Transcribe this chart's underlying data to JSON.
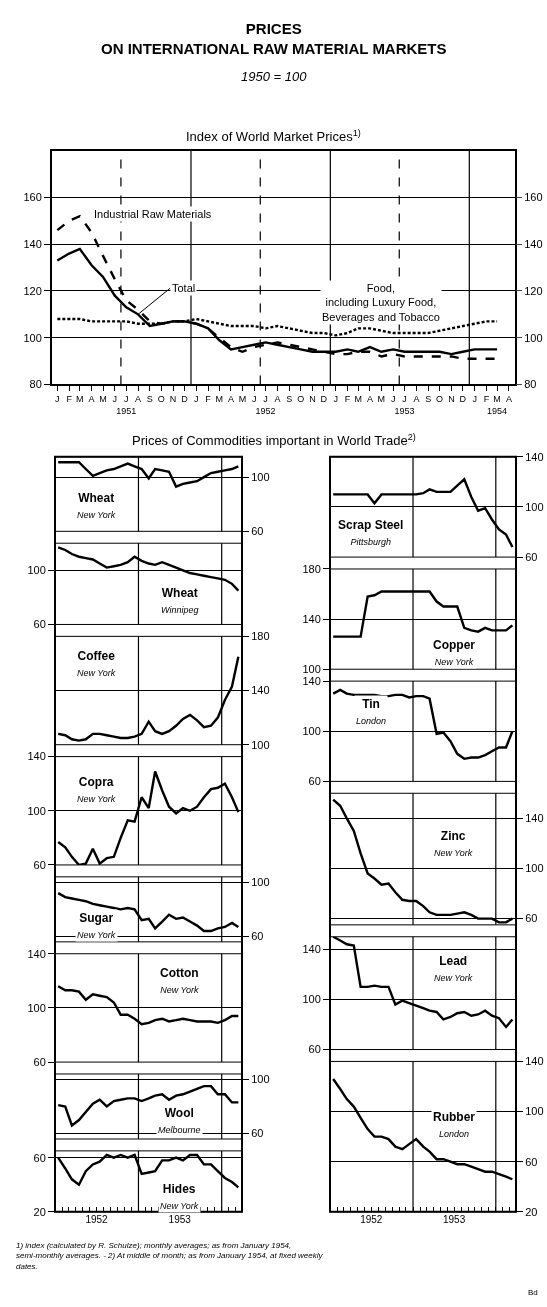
{
  "chart_data": [
    {
      "type": "line",
      "title": "PRICES\nON INTERNATIONAL RAW MATERIAL MARKETS",
      "subtitle": "1950 = 100",
      "annotations": [
        "Index of World Market Prices$^{1)}$"
      ],
      "x": [
        "1951-01-15",
        "1951-02-15",
        "1951-03-15",
        "1951-04-15",
        "1951-05-15",
        "1951-06-15",
        "1951-07-15",
        "1951-08-15",
        "1951-09-15",
        "1951-10-15",
        "1951-11-15",
        "1951-12-15",
        "1952-01-15",
        "1952-02-15",
        "1952-03-15",
        "1952-04-15",
        "1952-05-15",
        "1952-06-15",
        "1952-07-15",
        "1952-08-15",
        "1952-09-15",
        "1952-10-15",
        "1952-11-15",
        "1952-12-15",
        "1953-01-15",
        "1953-02-15",
        "1953-03-15",
        "1953-04-15",
        "1953-05-15",
        "1953-06-15",
        "1953-07-15",
        "1953-08-15",
        "1953-09-15",
        "1953-10-15",
        "1953-11-15",
        "1953-12-15",
        "1954-01-15",
        "1954-02-15",
        "1954-03-15"
      ],
      "series": [
        {
          "name": "Industrial Raw Materials",
          "color": "#000000",
          "line_style": "dashed",
          "values": [
            146,
            150,
            152,
            145,
            135,
            125,
            116,
            112,
            107,
            106,
            107,
            107,
            106,
            104,
            100,
            96,
            94,
            96,
            97,
            98,
            97,
            96,
            95,
            94,
            93,
            93,
            94,
            94,
            92,
            93,
            92,
            92,
            92,
            92,
            92,
            91,
            91,
            91,
            91
          ]
        },
        {
          "name": "Total",
          "color": "#000000",
          "line_style": "solid",
          "values": [
            133,
            136,
            138,
            131,
            126,
            118,
            113,
            110,
            105,
            106,
            107,
            107,
            106,
            104,
            99,
            95,
            96,
            97,
            98,
            97,
            96,
            95,
            94,
            94,
            94,
            95,
            94,
            96,
            94,
            95,
            94,
            94,
            94,
            94,
            93,
            94,
            95,
            95,
            95
          ]
        },
        {
          "name": "Food,\nincluding Luxury Food,\nBeverages and Tobacco",
          "color": "#000000",
          "line_style": "dotted",
          "values": [
            108,
            108,
            108,
            107,
            107,
            107,
            107,
            106,
            106,
            106,
            107,
            107,
            108,
            107,
            106,
            105,
            105,
            105,
            104,
            105,
            104,
            103,
            102,
            102,
            101,
            102,
            104,
            104,
            103,
            102,
            102,
            102,
            102,
            103,
            104,
            105,
            106,
            107,
            107
          ]
        }
      ],
      "xlim": [
        "1951-01-01",
        "1954-05-01"
      ],
      "xticks": [
        {
          "value": "1951-01-15",
          "label": "J"
        },
        {
          "value": "1951-02-15",
          "label": "F"
        },
        {
          "value": "1951-03-15",
          "label": "M"
        },
        {
          "value": "1951-04-15",
          "label": "A"
        },
        {
          "value": "1951-05-15",
          "label": "M"
        },
        {
          "value": "1951-06-15",
          "label": "J"
        },
        {
          "value": "1951-07-15",
          "label": "J\n1951"
        },
        {
          "value": "1951-08-15",
          "label": "A"
        },
        {
          "value": "1951-09-15",
          "label": "S"
        },
        {
          "value": "1951-10-15",
          "label": "O"
        },
        {
          "value": "1951-11-15",
          "label": "N"
        },
        {
          "value": "1951-12-15",
          "label": "D"
        },
        {
          "value": "1952-01-15",
          "label": "J"
        },
        {
          "value": "1952-02-15",
          "label": "F"
        },
        {
          "value": "1952-03-15",
          "label": "M"
        },
        {
          "value": "1952-04-15",
          "label": "A"
        },
        {
          "value": "1952-05-15",
          "label": "M"
        },
        {
          "value": "1952-06-15",
          "label": "J"
        },
        {
          "value": "1952-07-15",
          "label": "J\n1952"
        },
        {
          "value": "1952-08-15",
          "label": "A"
        },
        {
          "value": "1952-09-15",
          "label": "S"
        },
        {
          "value": "1952-10-15",
          "label": "O"
        },
        {
          "value": "1952-11-15",
          "label": "N"
        },
        {
          "value": "1952-12-15",
          "label": "D"
        },
        {
          "value": "1953-01-15",
          "label": "J"
        },
        {
          "value": "1953-02-15",
          "label": "F"
        },
        {
          "value": "1953-03-15",
          "label": "M"
        },
        {
          "value": "1953-04-15",
          "label": "A"
        },
        {
          "value": "1953-05-15",
          "label": "M"
        },
        {
          "value": "1953-06-15",
          "label": "J"
        },
        {
          "value": "1953-07-15",
          "label": "J\n1953"
        },
        {
          "value": "1953-08-15",
          "label": "A"
        },
        {
          "value": "1953-09-15",
          "label": "S"
        },
        {
          "value": "1953-10-15",
          "label": "O"
        },
        {
          "value": "1953-11-15",
          "label": "N"
        },
        {
          "value": "1953-12-15",
          "label": "D"
        },
        {
          "value": "1954-01-15",
          "label": "J"
        },
        {
          "value": "1954-02-15",
          "label": "F"
        },
        {
          "value": "1954-03-15",
          "label": "M\n1954"
        },
        {
          "value": "1954-04-15",
          "label": "A"
        }
      ],
      "ylim": [
        80,
        180
      ],
      "yticks": [
        80,
        100,
        120,
        140,
        160
      ],
      "y2lim": [
        80,
        180
      ],
      "y2ticks": [
        80,
        100,
        120,
        140,
        160
      ],
      "grid": "y",
      "ref_lines": [
        {
          "axis": "x",
          "value": "1951-07-01",
          "line_style": "dashed"
        },
        {
          "axis": "x",
          "value": "1952-01-01",
          "line_style": "solid"
        },
        {
          "axis": "x",
          "value": "1952-07-01",
          "line_style": "dashed"
        },
        {
          "axis": "x",
          "value": "1953-01-01",
          "line_style": "solid"
        },
        {
          "axis": "x",
          "value": "1953-07-01",
          "line_style": "dashed"
        },
        {
          "axis": "x",
          "value": "1954-01-01",
          "line_style": "solid"
        }
      ]
    },
    {
      "type": "line",
      "title": "Wheat",
      "subtitle": "New York",
      "annotations": [
        "Prices of Commodities important in World Trade$^{2)}$"
      ],
      "x": [
        "1952-01-15",
        "1952-02-15",
        "1952-03-15",
        "1952-04-15",
        "1952-05-15",
        "1952-06-15",
        "1952-07-15",
        "1952-08-15",
        "1952-09-15",
        "1952-10-15",
        "1952-11-15",
        "1952-12-15",
        "1953-01-15",
        "1953-02-15",
        "1953-03-15",
        "1953-04-15",
        "1953-05-15",
        "1953-06-15",
        "1953-07-15",
        "1953-08-15",
        "1953-09-15",
        "1953-10-15",
        "1953-11-15",
        "1953-12-15",
        "1954-01-15",
        "1954-02-15",
        "1954-03-15"
      ],
      "series": [
        {
          "color": "#000000",
          "values": [
            111,
            111,
            111,
            111,
            106,
            101,
            103,
            105,
            106,
            108,
            110,
            108,
            106,
            99,
            106,
            105,
            104,
            93,
            95,
            96,
            97,
            100,
            103,
            104,
            105,
            106,
            108
          ]
        }
      ],
      "xlim": [
        "1952-01-01",
        "1954-03-31"
      ],
      "ylim": [
        60,
        115
      ],
      "yticks": [
        60,
        100
      ],
      "grid": "y",
      "tick_labels": "y",
      "ref_lines": [
        {
          "axis": "x",
          "value": "1953-01-01",
          "line_style": "solid"
        },
        {
          "axis": "x",
          "value": "1954-01-01",
          "line_style": "solid"
        }
      ]
    },
    {
      "type": "line",
      "title": "Wheat",
      "subtitle": "Winnipeg",
      "x": [
        "1952-01-15",
        "1952-02-15",
        "1952-03-15",
        "1952-04-15",
        "1952-05-15",
        "1952-06-15",
        "1952-07-15",
        "1952-08-15",
        "1952-09-15",
        "1952-10-15",
        "1952-11-15",
        "1952-12-15",
        "1953-01-15",
        "1953-02-15",
        "1953-03-15",
        "1953-04-15",
        "1953-05-15",
        "1953-06-15",
        "1953-07-15",
        "1953-08-15",
        "1953-09-15",
        "1953-10-15",
        "1953-11-15",
        "1953-12-15",
        "1954-01-15",
        "1954-02-15",
        "1954-03-15"
      ],
      "series": [
        {
          "color": "#000000",
          "values": [
            117,
            115,
            112,
            110,
            109,
            108,
            105,
            102,
            103,
            104,
            106,
            110,
            107,
            105,
            104,
            106,
            104,
            102,
            100,
            98,
            97,
            96,
            95,
            94,
            93,
            90,
            85
          ]
        }
      ],
      "xlim": [
        "1952-01-01",
        "1954-03-31"
      ],
      "ylim": [
        60,
        120
      ],
      "yticks": [
        60,
        100
      ],
      "grid": "y",
      "tick_labels": "y",
      "ref_lines": [
        {
          "axis": "x",
          "value": "1953-01-01",
          "line_style": "solid"
        },
        {
          "axis": "x",
          "value": "1954-01-01",
          "line_style": "solid"
        }
      ]
    },
    {
      "type": "line",
      "title": "Coffee",
      "subtitle": "New York",
      "x": [
        "1952-01-15",
        "1952-02-15",
        "1952-03-15",
        "1952-04-15",
        "1952-05-15",
        "1952-06-15",
        "1952-07-15",
        "1952-08-15",
        "1952-09-15",
        "1952-10-15",
        "1952-11-15",
        "1952-12-15",
        "1953-01-15",
        "1953-02-15",
        "1953-03-15",
        "1953-04-15",
        "1953-05-15",
        "1953-06-15",
        "1953-07-15",
        "1953-08-15",
        "1953-09-15",
        "1953-10-15",
        "1953-11-15",
        "1953-12-15",
        "1954-01-15",
        "1954-02-15",
        "1954-03-15"
      ],
      "series": [
        {
          "color": "#000000",
          "values": [
            108,
            107,
            104,
            103,
            104,
            108,
            108,
            107,
            106,
            105,
            105,
            106,
            108,
            117,
            110,
            108,
            110,
            114,
            119,
            122,
            118,
            113,
            114,
            120,
            133,
            143,
            165
          ]
        }
      ],
      "xlim": [
        "1952-01-01",
        "1954-03-31"
      ],
      "ylim": [
        100,
        180
      ],
      "yticks": [
        100,
        140,
        180
      ],
      "grid": "y",
      "tick_labels": "y",
      "ref_lines": [
        {
          "axis": "x",
          "value": "1953-01-01",
          "line_style": "solid"
        },
        {
          "axis": "x",
          "value": "1954-01-01",
          "line_style": "solid"
        }
      ]
    },
    {
      "type": "line",
      "title": "Copra",
      "subtitle": "New York",
      "x": [
        "1952-01-15",
        "1952-02-15",
        "1952-03-15",
        "1952-04-15",
        "1952-05-15",
        "1952-06-15",
        "1952-07-15",
        "1952-08-15",
        "1952-09-15",
        "1952-10-15",
        "1952-11-15",
        "1952-12-15",
        "1953-01-15",
        "1953-02-15",
        "1953-03-15",
        "1953-04-15",
        "1953-05-15",
        "1953-06-15",
        "1953-07-15",
        "1953-08-15",
        "1953-09-15",
        "1953-10-15",
        "1953-11-15",
        "1953-12-15",
        "1954-01-15",
        "1954-02-15",
        "1954-03-15"
      ],
      "series": [
        {
          "color": "#000000",
          "values": [
            77,
            73,
            66,
            60,
            61,
            72,
            61,
            65,
            66,
            80,
            93,
            92,
            110,
            102,
            129,
            115,
            103,
            98,
            102,
            100,
            103,
            110,
            116,
            117,
            120,
            110,
            99
          ]
        }
      ],
      "xlim": [
        "1952-01-01",
        "1954-03-31"
      ],
      "ylim": [
        60,
        140
      ],
      "yticks": [
        60,
        100,
        140
      ],
      "grid": "y",
      "tick_labels": "y",
      "ref_lines": [
        {
          "axis": "x",
          "value": "1953-01-01",
          "line_style": "solid"
        },
        {
          "axis": "x",
          "value": "1954-01-01",
          "line_style": "solid"
        }
      ]
    },
    {
      "type": "line",
      "title": "Sugar",
      "subtitle": "New York",
      "x": [
        "1952-01-15",
        "1952-02-15",
        "1952-03-15",
        "1952-04-15",
        "1952-05-15",
        "1952-06-15",
        "1952-07-15",
        "1952-08-15",
        "1952-09-15",
        "1952-10-15",
        "1952-11-15",
        "1952-12-15",
        "1953-01-15",
        "1953-02-15",
        "1953-03-15",
        "1953-04-15",
        "1953-05-15",
        "1953-06-15",
        "1953-07-15",
        "1953-08-15",
        "1953-09-15",
        "1953-10-15",
        "1953-11-15",
        "1953-12-15",
        "1954-01-15",
        "1954-02-15",
        "1954-03-15"
      ],
      "series": [
        {
          "color": "#000000",
          "values": [
            92,
            89,
            88,
            87,
            86,
            84,
            83,
            82,
            81,
            80,
            81,
            80,
            72,
            73,
            66,
            71,
            76,
            73,
            74,
            71,
            68,
            64,
            64,
            66,
            67,
            70,
            67
          ]
        }
      ],
      "xlim": [
        "1952-01-01",
        "1954-03-31"
      ],
      "ylim": [
        56,
        104
      ],
      "yticks": [
        60,
        100
      ],
      "grid": "y",
      "tick_labels": "y",
      "ref_lines": [
        {
          "axis": "x",
          "value": "1953-01-01",
          "line_style": "solid"
        },
        {
          "axis": "x",
          "value": "1954-01-01",
          "line_style": "solid"
        }
      ]
    },
    {
      "type": "line",
      "title": "Cotton",
      "subtitle": "New York",
      "x": [
        "1952-01-15",
        "1952-02-15",
        "1952-03-15",
        "1952-04-15",
        "1952-05-15",
        "1952-06-15",
        "1952-07-15",
        "1952-08-15",
        "1952-09-15",
        "1952-10-15",
        "1952-11-15",
        "1952-12-15",
        "1953-01-15",
        "1953-02-15",
        "1953-03-15",
        "1953-04-15",
        "1953-05-15",
        "1953-06-15",
        "1953-07-15",
        "1953-08-15",
        "1953-09-15",
        "1953-10-15",
        "1953-11-15",
        "1953-12-15",
        "1954-01-15",
        "1954-02-15",
        "1954-03-15"
      ],
      "series": [
        {
          "color": "#000000",
          "values": [
            116,
            113,
            113,
            112,
            106,
            110,
            109,
            108,
            104,
            95,
            95,
            92,
            88,
            89,
            91,
            92,
            90,
            91,
            92,
            91,
            90,
            90,
            90,
            89,
            91,
            94,
            94
          ]
        }
      ],
      "xlim": [
        "1952-01-01",
        "1954-03-31"
      ],
      "ylim": [
        60,
        140
      ],
      "yticks": [
        60,
        100,
        140
      ],
      "grid": "y",
      "tick_labels": "y",
      "ref_lines": [
        {
          "axis": "x",
          "value": "1953-01-01",
          "line_style": "solid"
        },
        {
          "axis": "x",
          "value": "1954-01-01",
          "line_style": "solid"
        }
      ]
    },
    {
      "type": "line",
      "title": "Wool",
      "subtitle": "Melbourne",
      "x": [
        "1952-01-15",
        "1952-02-15",
        "1952-03-15",
        "1952-04-15",
        "1952-05-15",
        "1952-06-15",
        "1952-07-15",
        "1952-08-15",
        "1952-09-15",
        "1952-10-15",
        "1952-11-15",
        "1952-12-15",
        "1953-01-15",
        "1953-02-15",
        "1953-03-15",
        "1953-04-15",
        "1953-05-15",
        "1953-06-15",
        "1953-07-15",
        "1953-08-15",
        "1953-09-15",
        "1953-10-15",
        "1953-11-15",
        "1953-12-15",
        "1954-01-15",
        "1954-02-15",
        "1954-03-15"
      ],
      "series": [
        {
          "color": "#000000",
          "values": [
            81,
            80,
            66,
            70,
            76,
            82,
            85,
            80,
            84,
            85,
            86,
            86,
            84,
            86,
            88,
            89,
            85,
            88,
            89,
            91,
            93,
            95,
            95,
            89,
            89,
            83,
            83
          ]
        }
      ],
      "xlim": [
        "1952-01-01",
        "1954-03-31"
      ],
      "ylim": [
        56,
        104
      ],
      "yticks": [
        60,
        100
      ],
      "grid": "y",
      "tick_labels": "y",
      "ref_lines": [
        {
          "axis": "x",
          "value": "1953-01-01",
          "line_style": "solid"
        },
        {
          "axis": "x",
          "value": "1954-01-01",
          "line_style": "solid"
        }
      ]
    },
    {
      "type": "line",
      "title": "Hides",
      "subtitle": "New York",
      "x": [
        "1952-01-15",
        "1952-02-15",
        "1952-03-15",
        "1952-04-15",
        "1952-05-15",
        "1952-06-15",
        "1952-07-15",
        "1952-08-15",
        "1952-09-15",
        "1952-10-15",
        "1952-11-15",
        "1952-12-15",
        "1953-01-15",
        "1953-02-15",
        "1953-03-15",
        "1953-04-15",
        "1953-05-15",
        "1953-06-15",
        "1953-07-15",
        "1953-08-15",
        "1953-09-15",
        "1953-10-15",
        "1953-11-15",
        "1953-12-15",
        "1954-01-15",
        "1954-02-15",
        "1954-03-15"
      ],
      "series": [
        {
          "color": "#000000",
          "values": [
            60,
            52,
            44,
            40,
            50,
            55,
            57,
            62,
            60,
            62,
            60,
            62,
            48,
            49,
            50,
            58,
            58,
            60,
            58,
            62,
            62,
            55,
            55,
            50,
            45,
            42,
            38
          ]
        }
      ],
      "xlim": [
        "1952-01-01",
        "1954-03-31"
      ],
      "xticks": [
        {
          "value": "1952-02-01",
          "label": null
        },
        {
          "value": "1952-03-01",
          "label": null
        },
        {
          "value": "1952-04-01",
          "label": null
        },
        {
          "value": "1952-05-01",
          "label": null
        },
        {
          "value": "1952-06-01",
          "label": null
        },
        {
          "value": "1952-07-01",
          "label": "1952"
        },
        {
          "value": "1952-08-01",
          "label": null
        },
        {
          "value": "1952-09-01",
          "label": null
        },
        {
          "value": "1952-10-01",
          "label": null
        },
        {
          "value": "1952-11-01",
          "label": null
        },
        {
          "value": "1952-12-01",
          "label": null
        },
        {
          "value": "1953-01-01",
          "label": null
        },
        {
          "value": "1953-02-01",
          "label": null
        },
        {
          "value": "1953-03-01",
          "label": null
        },
        {
          "value": "1953-04-01",
          "label": null
        },
        {
          "value": "1953-05-01",
          "label": null
        },
        {
          "value": "1953-06-01",
          "label": null
        },
        {
          "value": "1953-07-01",
          "label": "1953"
        },
        {
          "value": "1953-08-01",
          "label": null
        },
        {
          "value": "1953-09-01",
          "label": null
        },
        {
          "value": "1953-10-01",
          "label": null
        },
        {
          "value": "1953-11-01",
          "label": null
        },
        {
          "value": "1953-12-01",
          "label": null
        },
        {
          "value": "1954-01-01",
          "label": null
        },
        {
          "value": "1954-02-01",
          "label": null
        },
        {
          "value": "1954-03-01",
          "label": null
        }
      ],
      "ylim": [
        20,
        65
      ],
      "yticks": [
        20,
        60
      ],
      "grid": "y",
      "ref_lines": [
        {
          "axis": "x",
          "value": "1953-01-01",
          "line_style": "solid"
        },
        {
          "axis": "x",
          "value": "1954-01-01",
          "line_style": "solid"
        }
      ]
    },
    {
      "type": "line",
      "title": "Scrap Steel",
      "subtitle": "Pittsburgh",
      "x": [
        "1952-01-15",
        "1952-02-15",
        "1952-03-15",
        "1952-04-15",
        "1952-05-15",
        "1952-06-15",
        "1952-07-15",
        "1952-08-15",
        "1952-09-15",
        "1952-10-15",
        "1952-11-15",
        "1952-12-15",
        "1953-01-15",
        "1953-02-15",
        "1953-03-15",
        "1953-04-15",
        "1953-05-15",
        "1953-06-15",
        "1953-07-15",
        "1953-08-15",
        "1953-09-15",
        "1953-10-15",
        "1953-11-15",
        "1953-12-15",
        "1954-01-15",
        "1954-02-15",
        "1954-03-15"
      ],
      "series": [
        {
          "color": "#000000",
          "values": [
            110,
            110,
            110,
            110,
            110,
            110,
            103,
            110,
            110,
            110,
            110,
            110,
            110,
            111,
            114,
            112,
            112,
            112,
            117,
            122,
            108,
            97,
            99,
            90,
            82,
            78,
            68
          ]
        }
      ],
      "xlim": [
        "1952-01-01",
        "1954-03-31"
      ],
      "ylim": [
        60,
        140
      ],
      "yticks": [
        60,
        100,
        140
      ],
      "grid": "y",
      "tick_labels": "y",
      "ref_lines": [
        {
          "axis": "x",
          "value": "1953-01-01",
          "line_style": "solid"
        },
        {
          "axis": "x",
          "value": "1954-01-01",
          "line_style": "solid"
        }
      ]
    },
    {
      "type": "line",
      "title": "Copper",
      "subtitle": "New York",
      "x": [
        "1952-01-15",
        "1952-02-15",
        "1952-03-15",
        "1952-04-15",
        "1952-05-15",
        "1952-06-15",
        "1952-07-15",
        "1952-08-15",
        "1952-09-15",
        "1952-10-15",
        "1952-11-15",
        "1952-12-15",
        "1953-01-15",
        "1953-02-15",
        "1953-03-15",
        "1953-04-15",
        "1953-05-15",
        "1953-06-15",
        "1953-07-15",
        "1953-08-15",
        "1953-09-15",
        "1953-10-15",
        "1953-11-15",
        "1953-12-15",
        "1954-01-15",
        "1954-02-15",
        "1954-03-15"
      ],
      "series": [
        {
          "color": "#000000",
          "values": [
            126,
            126,
            126,
            126,
            126,
            158,
            159,
            162,
            162,
            162,
            162,
            162,
            162,
            162,
            162,
            154,
            150,
            150,
            150,
            133,
            131,
            130,
            133,
            131,
            131,
            131,
            135
          ]
        }
      ],
      "xlim": [
        "1952-01-01",
        "1954-03-31"
      ],
      "ylim": [
        100,
        180
      ],
      "yticks": [
        100,
        140,
        180
      ],
      "grid": "y",
      "tick_labels": "y",
      "ref_lines": [
        {
          "axis": "x",
          "value": "1953-01-01",
          "line_style": "solid"
        },
        {
          "axis": "x",
          "value": "1954-01-01",
          "line_style": "solid"
        }
      ]
    },
    {
      "type": "line",
      "title": "Tin",
      "subtitle": "London",
      "x": [
        "1952-01-15",
        "1952-02-15",
        "1952-03-15",
        "1952-04-15",
        "1952-05-15",
        "1952-06-15",
        "1952-07-15",
        "1952-08-15",
        "1952-09-15",
        "1952-10-15",
        "1952-11-15",
        "1952-12-15",
        "1953-01-15",
        "1953-02-15",
        "1953-03-15",
        "1953-04-15",
        "1953-05-15",
        "1953-06-15",
        "1953-07-15",
        "1953-08-15",
        "1953-09-15",
        "1953-10-15",
        "1953-11-15",
        "1953-12-15",
        "1954-01-15",
        "1954-02-15",
        "1954-03-15"
      ],
      "series": [
        {
          "color": "#000000",
          "values": [
            130,
            133,
            130,
            129,
            129,
            129,
            129,
            128,
            128,
            129,
            129,
            127,
            128,
            128,
            126,
            98,
            99,
            92,
            82,
            78,
            79,
            79,
            81,
            84,
            87,
            87,
            100
          ]
        }
      ],
      "xlim": [
        "1952-01-01",
        "1954-03-31"
      ],
      "ylim": [
        60,
        140
      ],
      "yticks": [
        60,
        100,
        140
      ],
      "grid": "y",
      "tick_labels": "y",
      "ref_lines": [
        {
          "axis": "x",
          "value": "1953-01-01",
          "line_style": "solid"
        },
        {
          "axis": "x",
          "value": "1954-01-01",
          "line_style": "solid"
        }
      ]
    },
    {
      "type": "line",
      "title": "Zinc",
      "subtitle": "New York",
      "x": [
        "1952-01-15",
        "1952-02-15",
        "1952-03-15",
        "1952-04-15",
        "1952-05-15",
        "1952-06-15",
        "1952-07-15",
        "1952-08-15",
        "1952-09-15",
        "1952-10-15",
        "1952-11-15",
        "1952-12-15",
        "1953-01-15",
        "1953-02-15",
        "1953-03-15",
        "1953-04-15",
        "1953-05-15",
        "1953-06-15",
        "1953-07-15",
        "1953-08-15",
        "1953-09-15",
        "1953-10-15",
        "1953-11-15",
        "1953-12-15",
        "1954-01-15",
        "1954-02-15",
        "1954-03-15"
      ],
      "series": [
        {
          "color": "#000000",
          "values": [
            155,
            150,
            140,
            130,
            112,
            96,
            92,
            87,
            88,
            81,
            75,
            74,
            74,
            70,
            65,
            63,
            63,
            63,
            64,
            65,
            63,
            60,
            60,
            60,
            57,
            57,
            60
          ]
        }
      ],
      "xlim": [
        "1952-01-01",
        "1954-03-31"
      ],
      "ylim": [
        55,
        160
      ],
      "yticks": [
        60,
        100,
        140
      ],
      "grid": "y",
      "tick_labels": "y",
      "ref_lines": [
        {
          "axis": "x",
          "value": "1953-01-01",
          "line_style": "solid"
        },
        {
          "axis": "x",
          "value": "1954-01-01",
          "line_style": "solid"
        }
      ]
    },
    {
      "type": "line",
      "title": "Lead",
      "subtitle": "New York",
      "x": [
        "1952-01-15",
        "1952-02-15",
        "1952-03-15",
        "1952-04-15",
        "1952-05-15",
        "1952-06-15",
        "1952-07-15",
        "1952-08-15",
        "1952-09-15",
        "1952-10-15",
        "1952-11-15",
        "1952-12-15",
        "1953-01-15",
        "1953-02-15",
        "1953-03-15",
        "1953-04-15",
        "1953-05-15",
        "1953-06-15",
        "1953-07-15",
        "1953-08-15",
        "1953-09-15",
        "1953-10-15",
        "1953-11-15",
        "1953-12-15",
        "1954-01-15",
        "1954-02-15",
        "1954-03-15"
      ],
      "series": [
        {
          "color": "#000000",
          "values": [
            150,
            147,
            144,
            143,
            110,
            110,
            111,
            110,
            110,
            96,
            99,
            97,
            95,
            93,
            91,
            90,
            84,
            86,
            89,
            90,
            87,
            88,
            91,
            87,
            85,
            78,
            84
          ]
        }
      ],
      "xlim": [
        "1952-01-01",
        "1954-03-31"
      ],
      "ylim": [
        60,
        150
      ],
      "yticks": [
        60,
        100,
        140
      ],
      "grid": "y",
      "tick_labels": "y",
      "ref_lines": [
        {
          "axis": "x",
          "value": "1953-01-01",
          "line_style": "solid"
        },
        {
          "axis": "x",
          "value": "1954-01-01",
          "line_style": "solid"
        }
      ]
    },
    {
      "type": "line",
      "title": "Rubber",
      "subtitle": "London",
      "annotations": [
        "1) index (calculated by R. Schulze); monthly averages; as from January 1954,\nsemi-monthly averages. - 2) At middle of month; as from January 1954, at fixed weekly\ndates.",
        "Bd"
      ],
      "x": [
        "1952-01-15",
        "1952-02-15",
        "1952-03-15",
        "1952-04-15",
        "1952-05-15",
        "1952-06-15",
        "1952-07-15",
        "1952-08-15",
        "1952-09-15",
        "1952-10-15",
        "1952-11-15",
        "1952-12-15",
        "1953-01-15",
        "1953-02-15",
        "1953-03-15",
        "1953-04-15",
        "1953-05-15",
        "1953-06-15",
        "1953-07-15",
        "1953-08-15",
        "1953-09-15",
        "1953-10-15",
        "1953-11-15",
        "1953-12-15",
        "1954-01-15",
        "1954-02-15",
        "1954-03-15"
      ],
      "series": [
        {
          "color": "#000000",
          "values": [
            126,
            118,
            110,
            104,
            95,
            86,
            80,
            80,
            78,
            72,
            70,
            74,
            78,
            72,
            68,
            62,
            62,
            60,
            58,
            58,
            56,
            54,
            52,
            52,
            50,
            48,
            46
          ]
        }
      ],
      "xlim": [
        "1952-01-01",
        "1954-03-31"
      ],
      "xticks": [
        {
          "value": "1952-02-01",
          "label": null
        },
        {
          "value": "1952-03-01",
          "label": null
        },
        {
          "value": "1952-04-01",
          "label": null
        },
        {
          "value": "1952-05-01",
          "label": null
        },
        {
          "value": "1952-06-01",
          "label": null
        },
        {
          "value": "1952-07-01",
          "label": "1952"
        },
        {
          "value": "1952-08-01",
          "label": null
        },
        {
          "value": "1952-09-01",
          "label": null
        },
        {
          "value": "1952-10-01",
          "label": null
        },
        {
          "value": "1952-11-01",
          "label": null
        },
        {
          "value": "1952-12-01",
          "label": null
        },
        {
          "value": "1953-01-01",
          "label": null
        },
        {
          "value": "1953-02-01",
          "label": null
        },
        {
          "value": "1953-03-01",
          "label": null
        },
        {
          "value": "1953-04-01",
          "label": null
        },
        {
          "value": "1953-05-01",
          "label": null
        },
        {
          "value": "1953-06-01",
          "label": null
        },
        {
          "value": "1953-07-01",
          "label": "1953"
        },
        {
          "value": "1953-08-01",
          "label": null
        },
        {
          "value": "1953-09-01",
          "label": null
        },
        {
          "value": "1953-10-01",
          "label": null
        },
        {
          "value": "1953-11-01",
          "label": null
        },
        {
          "value": "1953-12-01",
          "label": null
        },
        {
          "value": "1954-01-01",
          "label": null
        },
        {
          "value": "1954-02-01",
          "label": null
        },
        {
          "value": "1954-03-01",
          "label": null
        }
      ],
      "ylim": [
        20,
        140
      ],
      "yticks": [
        20,
        60,
        100,
        140
      ],
      "grid": "y",
      "ref_lines": [
        {
          "axis": "x",
          "value": "1953-01-01",
          "line_style": "solid"
        },
        {
          "axis": "x",
          "value": "1954-01-01",
          "line_style": "solid"
        }
      ]
    }
  ]
}
